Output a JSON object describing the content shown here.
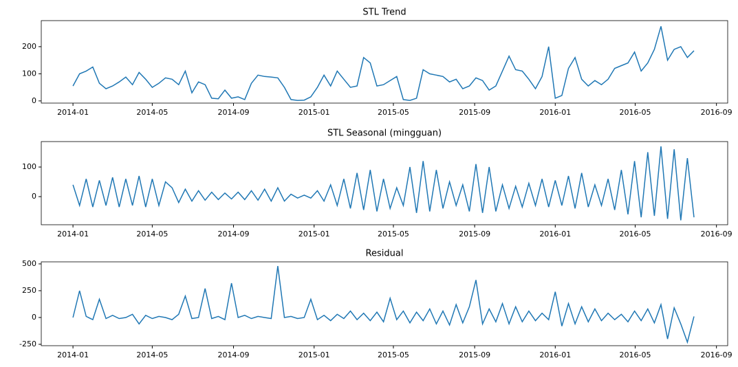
{
  "chart_data": [
    {
      "type": "line",
      "title": "STL Trend",
      "color": "#1f77b4",
      "x": [
        0,
        10,
        20,
        30,
        40,
        50,
        60,
        70,
        80,
        90,
        100,
        110,
        120,
        130,
        140,
        150,
        160,
        170,
        180,
        190,
        200,
        210,
        220,
        230,
        240,
        250,
        260,
        270,
        280,
        290,
        300,
        310,
        320,
        330,
        340,
        350,
        360,
        370,
        380,
        390,
        400,
        410,
        420,
        430,
        440,
        450,
        460,
        470,
        480,
        490,
        500,
        510,
        520,
        530,
        540,
        550,
        560,
        570,
        580,
        590,
        600,
        610,
        620,
        630,
        640,
        650,
        660,
        670,
        680,
        690,
        700,
        710,
        720,
        730,
        740,
        750,
        760,
        770,
        780,
        790,
        800,
        810,
        820,
        830,
        840,
        850,
        860,
        870,
        880,
        890,
        900,
        910,
        920,
        930,
        940
      ],
      "values": [
        55,
        100,
        110,
        125,
        65,
        45,
        55,
        70,
        88,
        60,
        105,
        80,
        50,
        65,
        85,
        80,
        60,
        110,
        30,
        70,
        60,
        10,
        8,
        40,
        10,
        15,
        5,
        65,
        95,
        90,
        88,
        85,
        50,
        5,
        2,
        3,
        15,
        50,
        95,
        55,
        110,
        80,
        50,
        55,
        160,
        140,
        55,
        60,
        75,
        90,
        5,
        2,
        10,
        115,
        100,
        95,
        90,
        70,
        80,
        45,
        55,
        85,
        75,
        40,
        55,
        110,
        165,
        115,
        110,
        80,
        45,
        90,
        200,
        10,
        20,
        120,
        160,
        80,
        55,
        75,
        60,
        80,
        120,
        130,
        140,
        180,
        110,
        140,
        190,
        275,
        150,
        190,
        200,
        160,
        185
      ],
      "xlim": [
        -48,
        991
      ],
      "xticks": [
        {
          "value": 0,
          "label": "2014-01"
        },
        {
          "value": 120,
          "label": "2014-05"
        },
        {
          "value": 243,
          "label": "2014-09"
        },
        {
          "value": 365,
          "label": "2015-01"
        },
        {
          "value": 485,
          "label": "2015-05"
        },
        {
          "value": 608,
          "label": "2015-09"
        },
        {
          "value": 730,
          "label": "2016-01"
        },
        {
          "value": 851,
          "label": "2016-05"
        },
        {
          "value": 974,
          "label": "2016-09"
        }
      ],
      "ylim": [
        -8,
        296
      ],
      "yticks": [
        0,
        100,
        200
      ]
    },
    {
      "type": "line",
      "title": "STL Seasonal (mingguan)",
      "color": "#1f77b4",
      "x": [
        0,
        10,
        20,
        30,
        40,
        50,
        60,
        70,
        80,
        90,
        100,
        110,
        120,
        130,
        140,
        150,
        160,
        170,
        180,
        190,
        200,
        210,
        220,
        230,
        240,
        250,
        260,
        270,
        280,
        290,
        300,
        310,
        320,
        330,
        340,
        350,
        360,
        370,
        380,
        390,
        400,
        410,
        420,
        430,
        440,
        450,
        460,
        470,
        480,
        490,
        500,
        510,
        520,
        530,
        540,
        550,
        560,
        570,
        580,
        590,
        600,
        610,
        620,
        630,
        640,
        650,
        660,
        670,
        680,
        690,
        700,
        710,
        720,
        730,
        740,
        750,
        760,
        770,
        780,
        790,
        800,
        810,
        820,
        830,
        840,
        850,
        860,
        870,
        880,
        890,
        900,
        910,
        920,
        930,
        940
      ],
      "values": [
        40,
        -30,
        60,
        -35,
        55,
        -30,
        65,
        -35,
        60,
        -30,
        70,
        -35,
        60,
        -30,
        50,
        30,
        -20,
        25,
        -15,
        20,
        -12,
        15,
        -10,
        12,
        -8,
        15,
        -10,
        20,
        -12,
        25,
        -15,
        30,
        -15,
        8,
        -5,
        5,
        -5,
        20,
        -15,
        40,
        -30,
        60,
        -40,
        80,
        -45,
        90,
        -50,
        60,
        -40,
        30,
        -30,
        100,
        -55,
        120,
        -50,
        90,
        -40,
        50,
        -30,
        40,
        -50,
        110,
        -55,
        100,
        -50,
        40,
        -40,
        35,
        -35,
        45,
        -30,
        60,
        -35,
        55,
        -30,
        70,
        -40,
        80,
        -35,
        40,
        -30,
        60,
        -45,
        90,
        -60,
        120,
        -70,
        150,
        -65,
        170,
        -75,
        160,
        -80,
        130,
        -70
      ],
      "xlim": [
        -48,
        991
      ],
      "xticks": [
        {
          "value": 0,
          "label": "2014-01"
        },
        {
          "value": 120,
          "label": "2014-05"
        },
        {
          "value": 243,
          "label": "2014-09"
        },
        {
          "value": 365,
          "label": "2015-01"
        },
        {
          "value": 485,
          "label": "2015-05"
        },
        {
          "value": 608,
          "label": "2015-09"
        },
        {
          "value": 730,
          "label": "2016-01"
        },
        {
          "value": 851,
          "label": "2016-05"
        },
        {
          "value": 974,
          "label": "2016-09"
        }
      ],
      "ylim": [
        -95,
        186
      ],
      "yticks": [
        0,
        100
      ]
    },
    {
      "type": "line",
      "title": "Residual",
      "color": "#1f77b4",
      "x": [
        0,
        10,
        20,
        30,
        40,
        50,
        60,
        70,
        80,
        90,
        100,
        110,
        120,
        130,
        140,
        150,
        160,
        170,
        180,
        190,
        200,
        210,
        220,
        230,
        240,
        250,
        260,
        270,
        280,
        290,
        300,
        310,
        320,
        330,
        340,
        350,
        360,
        370,
        380,
        390,
        400,
        410,
        420,
        430,
        440,
        450,
        460,
        470,
        480,
        490,
        500,
        510,
        520,
        530,
        540,
        550,
        560,
        570,
        580,
        590,
        600,
        610,
        620,
        630,
        640,
        650,
        660,
        670,
        680,
        690,
        700,
        710,
        720,
        730,
        740,
        750,
        760,
        770,
        780,
        790,
        800,
        810,
        820,
        830,
        840,
        850,
        860,
        870,
        880,
        890,
        900,
        910,
        920,
        930,
        940
      ],
      "values": [
        0,
        250,
        10,
        -20,
        170,
        -10,
        20,
        -10,
        0,
        30,
        -60,
        20,
        -10,
        10,
        0,
        -20,
        30,
        200,
        -10,
        0,
        270,
        -10,
        10,
        -20,
        320,
        0,
        20,
        -10,
        10,
        0,
        -10,
        480,
        0,
        10,
        -10,
        0,
        170,
        -20,
        20,
        -30,
        30,
        -10,
        60,
        -20,
        40,
        -30,
        50,
        -40,
        180,
        -20,
        60,
        -50,
        50,
        -30,
        80,
        -60,
        60,
        -70,
        120,
        -50,
        100,
        350,
        -60,
        80,
        -40,
        130,
        -60,
        100,
        -40,
        60,
        -30,
        40,
        -20,
        240,
        -80,
        130,
        -60,
        100,
        -40,
        80,
        -30,
        40,
        -20,
        30,
        -40,
        60,
        -30,
        80,
        -50,
        120,
        -200,
        90,
        -60,
        -230,
        10
      ],
      "xlim": [
        -48,
        991
      ],
      "xticks": [
        {
          "value": 0,
          "label": "2014-01"
        },
        {
          "value": 120,
          "label": "2014-05"
        },
        {
          "value": 243,
          "label": "2014-09"
        },
        {
          "value": 365,
          "label": "2015-01"
        },
        {
          "value": 485,
          "label": "2015-05"
        },
        {
          "value": 608,
          "label": "2015-09"
        },
        {
          "value": 730,
          "label": "2016-01"
        },
        {
          "value": 851,
          "label": "2016-05"
        },
        {
          "value": 974,
          "label": "2016-09"
        }
      ],
      "ylim": [
        -263,
        519
      ],
      "yticks": [
        -250,
        0,
        250,
        500
      ]
    }
  ]
}
